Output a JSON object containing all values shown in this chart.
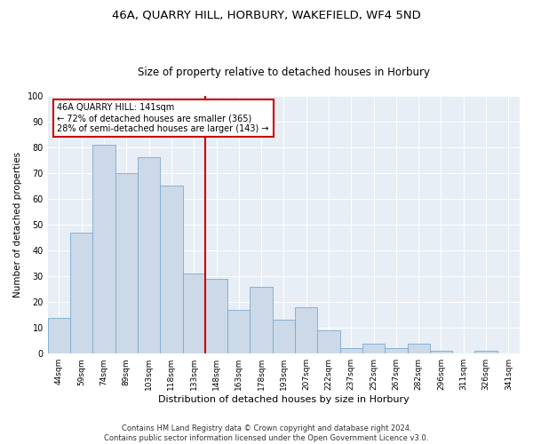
{
  "title1": "46A, QUARRY HILL, HORBURY, WAKEFIELD, WF4 5ND",
  "title2": "Size of property relative to detached houses in Horbury",
  "xlabel": "Distribution of detached houses by size in Horbury",
  "ylabel": "Number of detached properties",
  "categories": [
    "44sqm",
    "59sqm",
    "74sqm",
    "89sqm",
    "103sqm",
    "118sqm",
    "133sqm",
    "148sqm",
    "163sqm",
    "178sqm",
    "193sqm",
    "207sqm",
    "222sqm",
    "237sqm",
    "252sqm",
    "267sqm",
    "282sqm",
    "296sqm",
    "311sqm",
    "326sqm",
    "341sqm"
  ],
  "values": [
    14,
    47,
    81,
    70,
    76,
    65,
    31,
    29,
    17,
    26,
    13,
    18,
    9,
    2,
    4,
    2,
    4,
    1,
    0,
    1,
    0
  ],
  "bar_color": "#ccd9e8",
  "bar_edge_color": "#7baacf",
  "vline_color": "#cc0000",
  "annotation_text": "46A QUARRY HILL: 141sqm\n← 72% of detached houses are smaller (365)\n28% of semi-detached houses are larger (143) →",
  "annotation_box_color": "#cc0000",
  "background_color": "#e8eef5",
  "ylim": [
    0,
    100
  ],
  "yticks": [
    0,
    10,
    20,
    30,
    40,
    50,
    60,
    70,
    80,
    90,
    100
  ],
  "footer": "Contains HM Land Registry data © Crown copyright and database right 2024.\nContains public sector information licensed under the Open Government Licence v3.0.",
  "title1_fontsize": 9.5,
  "title2_fontsize": 8.5,
  "xlabel_fontsize": 8,
  "ylabel_fontsize": 7.5,
  "tick_fontsize": 6.5,
  "footer_fontsize": 6,
  "annot_fontsize": 7
}
